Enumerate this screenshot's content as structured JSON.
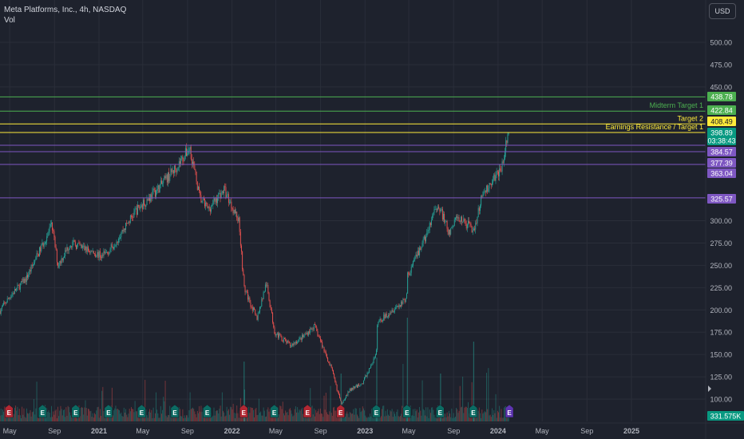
{
  "header": {
    "title": "Meta Platforms, Inc., 4h, NASDAQ",
    "volume_label": "Vol"
  },
  "currency_button": "USD",
  "colors": {
    "up": "#26a69a",
    "down": "#ef5350",
    "green_line": "#4caf50",
    "yellow_line": "#ffeb3b",
    "purple_line": "#7e57c2",
    "price_tag": "#089981",
    "earnings_red": "#b22833",
    "earnings_teal": "#0c6b63",
    "earnings_purple": "#5e35b1"
  },
  "chart_data": {
    "type": "candlestick",
    "title": "Meta Platforms, Inc., 4h, NASDAQ",
    "y_ticks": [
      "500.00",
      "475.00",
      "450.00",
      "300.00",
      "275.00",
      "250.00",
      "225.00",
      "200.00",
      "175.00",
      "150.00",
      "125.00",
      "100.00"
    ],
    "y_range": [
      90,
      535
    ],
    "x_ticks": [
      "May",
      "Sep",
      "2021",
      "May",
      "Sep",
      "2022",
      "May",
      "Sep",
      "2023",
      "May",
      "Sep",
      "2024",
      "May",
      "Sep",
      "2025"
    ],
    "x_range": [
      "2020-03",
      "2025-09"
    ],
    "price_path": [
      [
        "2020-03-20",
        190
      ],
      [
        "2020-05-01",
        215
      ],
      [
        "2020-06-15",
        235
      ],
      [
        "2020-08-25",
        295
      ],
      [
        "2020-09-10",
        250
      ],
      [
        "2020-10-15",
        275
      ],
      [
        "2020-11-15",
        270
      ],
      [
        "2021-01-10",
        260
      ],
      [
        "2021-02-01",
        268
      ],
      [
        "2021-04-10",
        310
      ],
      [
        "2021-06-10",
        335
      ],
      [
        "2021-08-01",
        360
      ],
      [
        "2021-09-07",
        382
      ],
      [
        "2021-10-05",
        325
      ],
      [
        "2021-10-28",
        313
      ],
      [
        "2021-12-10",
        335
      ],
      [
        "2022-01-20",
        300
      ],
      [
        "2022-02-03",
        225
      ],
      [
        "2022-03-10",
        190
      ],
      [
        "2022-04-05",
        230
      ],
      [
        "2022-04-28",
        175
      ],
      [
        "2022-06-10",
        160
      ],
      [
        "2022-07-15",
        170
      ],
      [
        "2022-08-15",
        182
      ],
      [
        "2022-09-30",
        135
      ],
      [
        "2022-10-27",
        95
      ],
      [
        "2022-11-20",
        110
      ],
      [
        "2022-12-25",
        118
      ],
      [
        "2023-02-01",
        150
      ],
      [
        "2023-02-03",
        185
      ],
      [
        "2023-03-15",
        200
      ],
      [
        "2023-04-25",
        212
      ],
      [
        "2023-04-27",
        238
      ],
      [
        "2023-06-15",
        280
      ],
      [
        "2023-07-20",
        320
      ],
      [
        "2023-08-20",
        285
      ],
      [
        "2023-09-10",
        305
      ],
      [
        "2023-10-26",
        290
      ],
      [
        "2023-11-20",
        330
      ],
      [
        "2023-12-15",
        345
      ],
      [
        "2024-01-10",
        360
      ],
      [
        "2024-01-30",
        398.89
      ]
    ],
    "levels": [
      {
        "value": 438.78,
        "label": "",
        "color": "#4caf50"
      },
      {
        "value": 422.84,
        "label": "Midterm Target 1",
        "color": "#4caf50"
      },
      {
        "value": 408.49,
        "label": "Target 2",
        "color": "#ffeb3b"
      },
      {
        "value": 398.89,
        "label": "Earnings Resistance / Target 1",
        "color": "#ffeb3b"
      },
      {
        "value": 384.57,
        "label": "",
        "color": "#7e57c2"
      },
      {
        "value": 377.39,
        "label": "",
        "color": "#7e57c2"
      },
      {
        "value": 363.04,
        "label": "",
        "color": "#7e57c2"
      },
      {
        "value": 325.57,
        "label": "",
        "color": "#7e57c2"
      }
    ],
    "price_tags": [
      {
        "text": "438.78",
        "bg": "#4caf50",
        "fg": "#ffffff"
      },
      {
        "text": "422.84",
        "bg": "#4caf50",
        "fg": "#ffffff"
      },
      {
        "text": "408.49",
        "bg": "#ffeb3b",
        "fg": "#131722"
      },
      {
        "text": "398.89",
        "bg": "#089981",
        "fg": "#ffffff"
      },
      {
        "text": "03:38:43",
        "bg": "#089981",
        "fg": "#ffffff"
      },
      {
        "text": "384.57",
        "bg": "#7e57c2",
        "fg": "#ffffff"
      },
      {
        "text": "377.39",
        "bg": "#7e57c2",
        "fg": "#ffffff"
      },
      {
        "text": "363.04",
        "bg": "#7e57c2",
        "fg": "#ffffff"
      },
      {
        "text": "325.57",
        "bg": "#7e57c2",
        "fg": "#ffffff"
      }
    ],
    "volume_tag": "331.575K",
    "earnings_markers": [
      {
        "date": "2020-04-29",
        "color": "red"
      },
      {
        "date": "2020-07-30",
        "color": "teal"
      },
      {
        "date": "2020-10-29",
        "color": "teal"
      },
      {
        "date": "2021-01-27",
        "color": "teal"
      },
      {
        "date": "2021-04-28",
        "color": "teal"
      },
      {
        "date": "2021-07-28",
        "color": "teal"
      },
      {
        "date": "2021-10-25",
        "color": "teal"
      },
      {
        "date": "2022-02-02",
        "color": "red"
      },
      {
        "date": "2022-04-27",
        "color": "teal"
      },
      {
        "date": "2022-07-27",
        "color": "red"
      },
      {
        "date": "2022-10-26",
        "color": "red"
      },
      {
        "date": "2023-02-01",
        "color": "teal"
      },
      {
        "date": "2023-04-26",
        "color": "teal"
      },
      {
        "date": "2023-07-26",
        "color": "teal"
      },
      {
        "date": "2023-10-25",
        "color": "teal"
      },
      {
        "date": "2024-02-01",
        "color": "purple"
      }
    ],
    "earnings_label": "E"
  }
}
